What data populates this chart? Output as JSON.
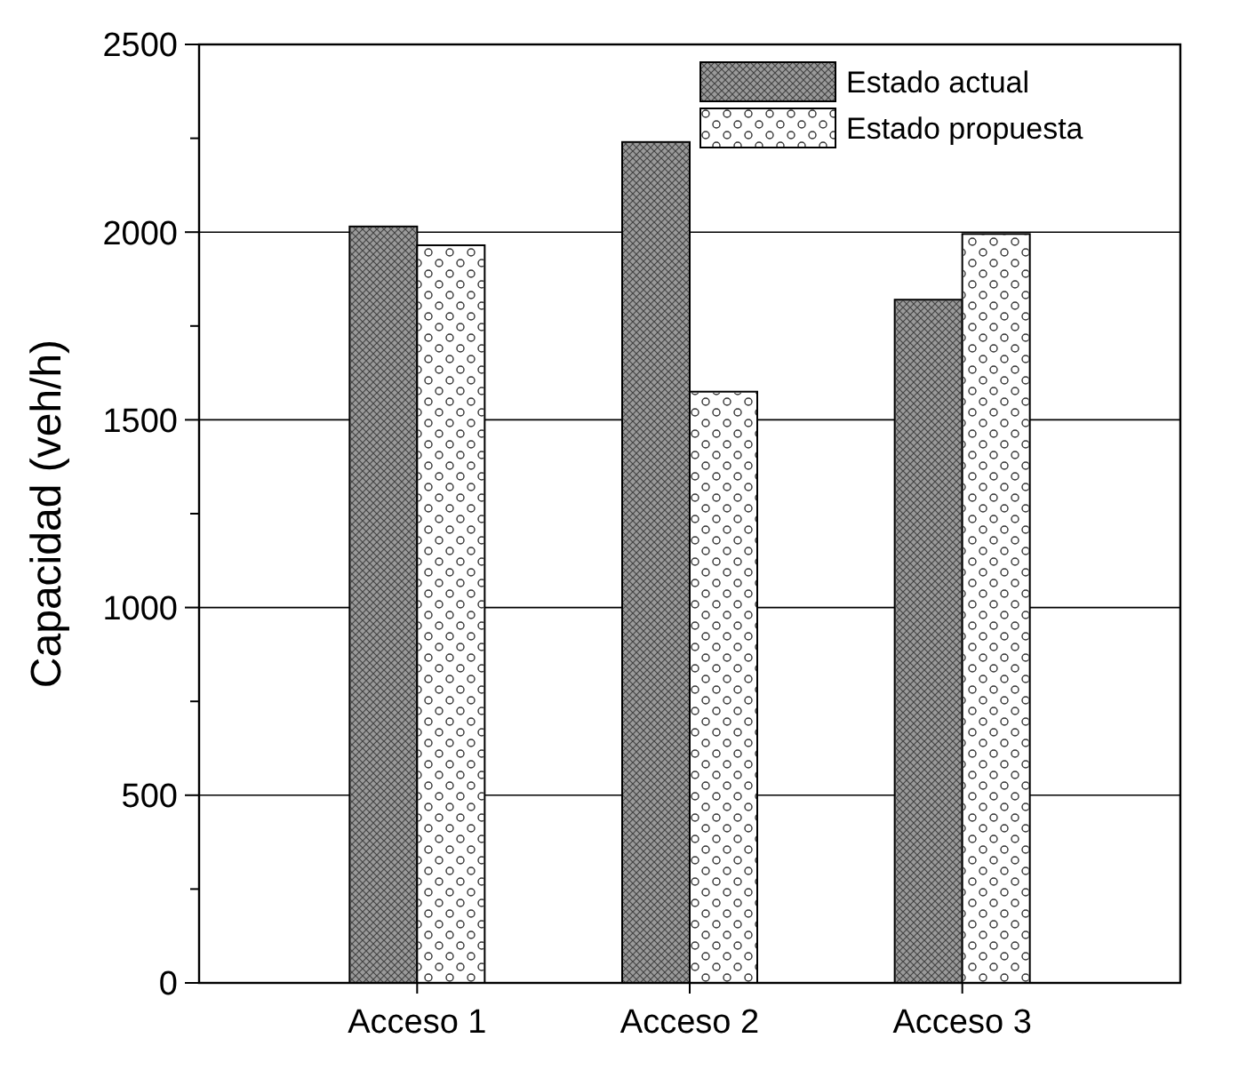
{
  "chart_data": {
    "type": "bar",
    "ylabel": "Capacidad (veh/h)",
    "categories": [
      "Acceso 1",
      "Acceso 2",
      "Acceso 3"
    ],
    "series": [
      {
        "name": "Estado actual",
        "color": "#9a9a9a",
        "values": [
          2015,
          2240,
          1820
        ]
      },
      {
        "name": "Estado propuesta",
        "color": "#ffffff",
        "values": [
          1965,
          1575,
          1995
        ]
      }
    ],
    "ylim": [
      0,
      2500
    ],
    "yticks": [
      0,
      {
        "value": 250,
        "label": null
      },
      500,
      {
        "value": 750,
        "label": null
      },
      1000,
      {
        "value": 1250,
        "label": null
      },
      1500,
      {
        "value": 1750,
        "label": null
      },
      2000,
      {
        "value": 2250,
        "label": null
      },
      2500
    ],
    "grid": "y",
    "legend": "top right"
  }
}
